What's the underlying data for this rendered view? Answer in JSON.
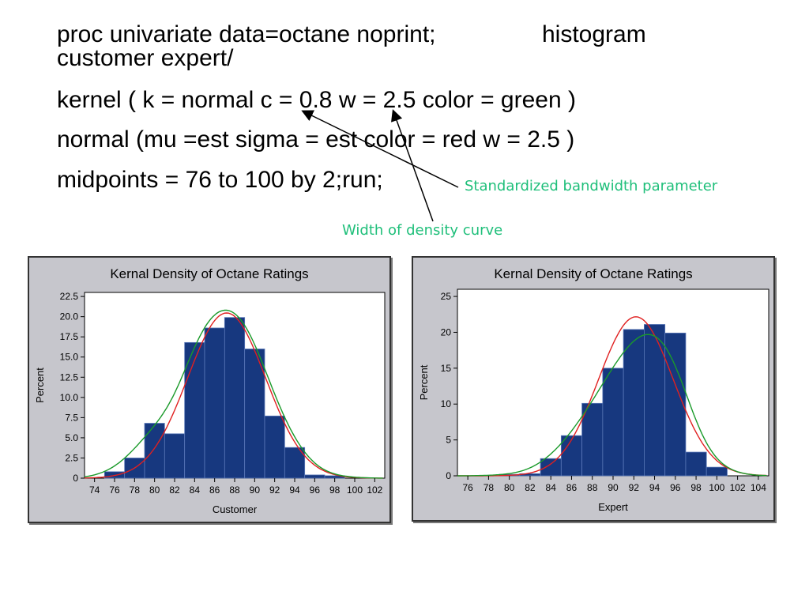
{
  "code": {
    "line1a": "proc univariate data=octane noprint;",
    "line1b": "histogram",
    "line2": "customer expert/",
    "line3": "kernel ( k = normal c = 0.8 w = 2.5 color = green )",
    "line4": "normal (mu =est sigma = est color = red w = 2.5 )",
    "line5": "midpoints = 76 to 100 by 2;run;"
  },
  "annotations": {
    "bandwidth": "Standardized bandwidth parameter",
    "width": "Width of density curve"
  },
  "colors": {
    "accent_note": "#1fbf7a",
    "bar": "#17387f",
    "normal_curve": "#e02020",
    "kernel_curve": "#1a9a2a",
    "panel_bg": "#c6c6cc"
  },
  "chart_data": [
    {
      "type": "bar",
      "title": "Kernal Density of Octane Ratings",
      "xlabel": "Customer",
      "ylabel": "Percent",
      "bin_width": 2,
      "xlim": [
        73,
        103
      ],
      "ylim": [
        0,
        23
      ],
      "x_ticks": [
        "74",
        "76",
        "78",
        "80",
        "82",
        "84",
        "86",
        "88",
        "90",
        "92",
        "94",
        "96",
        "98",
        "100",
        "102"
      ],
      "y_ticks": [
        "0",
        "2.5",
        "5.0",
        "7.5",
        "10.0",
        "12.5",
        "15.0",
        "17.5",
        "20.0",
        "22.5"
      ],
      "bins": [
        76,
        78,
        80,
        82,
        84,
        86,
        88,
        90,
        92,
        94,
        96,
        98
      ],
      "values": [
        0.8,
        2.5,
        6.8,
        5.5,
        16.8,
        18.6,
        19.9,
        16.0,
        7.7,
        3.8,
        0.4,
        0.3
      ],
      "normal": {
        "mu": 87.2,
        "sigma": 3.9
      },
      "kernel_peak": {
        "x": 86.7,
        "y": 20.8
      },
      "series": [
        {
          "name": "normal",
          "color": "red"
        },
        {
          "name": "kernel",
          "color": "green"
        }
      ]
    },
    {
      "type": "bar",
      "title": "Kernal Density of Octane Ratings",
      "xlabel": "Expert",
      "ylabel": "Percent",
      "bin_width": 2,
      "xlim": [
        75,
        105
      ],
      "ylim": [
        0,
        26
      ],
      "x_ticks": [
        "76",
        "78",
        "80",
        "82",
        "84",
        "86",
        "88",
        "90",
        "92",
        "94",
        "96",
        "98",
        "100",
        "102",
        "104"
      ],
      "y_ticks": [
        "0",
        "5",
        "10",
        "15",
        "20",
        "25"
      ],
      "bins": [
        80,
        82,
        84,
        86,
        88,
        90,
        92,
        94,
        96,
        98,
        100
      ],
      "values": [
        0.2,
        0.3,
        2.4,
        5.6,
        10.1,
        15.0,
        20.4,
        21.1,
        19.9,
        3.3,
        1.2
      ],
      "normal": {
        "mu": 92.2,
        "sigma": 3.6
      },
      "kernel_peak": {
        "x": 93.9,
        "y": 19.7
      },
      "series": [
        {
          "name": "normal",
          "color": "red"
        },
        {
          "name": "kernel",
          "color": "green"
        }
      ]
    }
  ]
}
